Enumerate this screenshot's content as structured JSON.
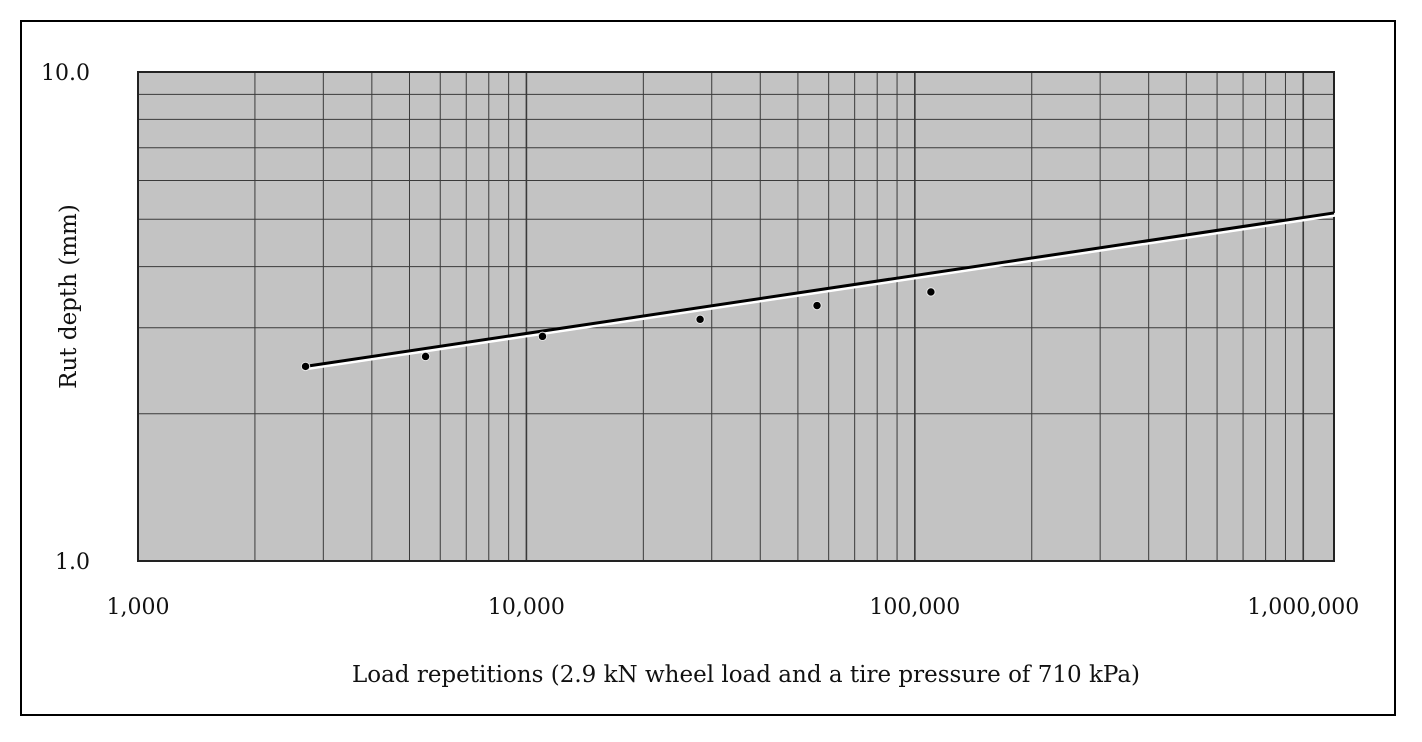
{
  "chart_data": {
    "type": "line",
    "title": "",
    "xlabel": "Load repetitions (2.9 kN wheel load and a tire pressure of 710 kPa)",
    "ylabel": "Rut depth (mm)",
    "x_scale": "log",
    "y_scale": "log",
    "xlim": [
      1000,
      1200000
    ],
    "ylim": [
      1.0,
      10.0
    ],
    "x_tick_labels": [
      {
        "value": 1000,
        "label": "1,000"
      },
      {
        "value": 10000,
        "label": "10,000"
      },
      {
        "value": 100000,
        "label": "100,000"
      },
      {
        "value": 1000000,
        "label": "1,000,000"
      }
    ],
    "y_tick_labels": [
      {
        "value": 1.0,
        "label": "1.0"
      },
      {
        "value": 10.0,
        "label": "10.0"
      }
    ],
    "grid": true,
    "colors": {
      "plot_background": "#c3c3c3",
      "grid": "#3a3a3a",
      "line": "#000000",
      "marker": "#000000"
    },
    "series": [
      {
        "points": [
          {
            "x": 2700,
            "y": 2.5
          },
          {
            "x": 5500,
            "y": 2.62
          },
          {
            "x": 11000,
            "y": 2.88
          },
          {
            "x": 28000,
            "y": 3.12
          },
          {
            "x": 56000,
            "y": 3.33
          },
          {
            "x": 110000,
            "y": 3.55
          }
        ],
        "fit_line": {
          "x_start": 2700,
          "y_start": 2.5,
          "x_end": 1200000,
          "y_end": 5.15
        }
      }
    ]
  }
}
